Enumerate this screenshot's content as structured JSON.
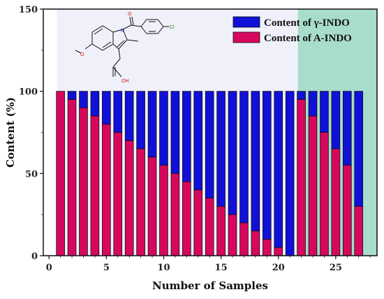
{
  "chart_data": {
    "type": "bar",
    "stacked": true,
    "x": [
      1,
      2,
      3,
      4,
      5,
      6,
      7,
      8,
      9,
      10,
      11,
      12,
      13,
      14,
      15,
      16,
      17,
      18,
      19,
      20,
      21,
      22,
      23,
      24,
      25,
      26,
      27
    ],
    "series": [
      {
        "name": "Content of γ-INDO",
        "color": "#1010d8",
        "values": [
          0,
          5,
          10,
          15,
          20,
          25,
          30,
          35,
          40,
          45,
          50,
          55,
          60,
          65,
          70,
          75,
          80,
          85,
          90,
          95,
          100,
          5,
          15,
          25,
          35,
          45,
          70
        ]
      },
      {
        "name": "Content of A-INDO",
        "color": "#d8075e",
        "values": [
          100,
          95,
          90,
          85,
          80,
          75,
          70,
          65,
          60,
          55,
          50,
          45,
          40,
          35,
          30,
          25,
          20,
          15,
          10,
          5,
          0,
          95,
          85,
          75,
          65,
          55,
          30
        ]
      }
    ],
    "xlabel": "Number of Samples",
    "ylabel": "Content (%)",
    "xlim": [
      -0.5,
      28.6
    ],
    "ylim": [
      0,
      150
    ],
    "xticks": [
      0,
      5,
      10,
      15,
      20,
      25
    ],
    "yticks": [
      0,
      50,
      100,
      150
    ],
    "legend_position": "top-right",
    "regions": [
      {
        "name": "left-region",
        "color": "#f0f0fa",
        "x_from": 0.7,
        "x_to": 21.7
      },
      {
        "name": "right-region",
        "color": "#a8dccc",
        "x_from": 21.7,
        "x_to": 28.6
      }
    ],
    "structure_labels": {
      "chloro": "Cl",
      "nitrogen": "N",
      "carbonyl_o": "O",
      "methoxy_o": "O",
      "hydroxyl": "OH"
    }
  }
}
